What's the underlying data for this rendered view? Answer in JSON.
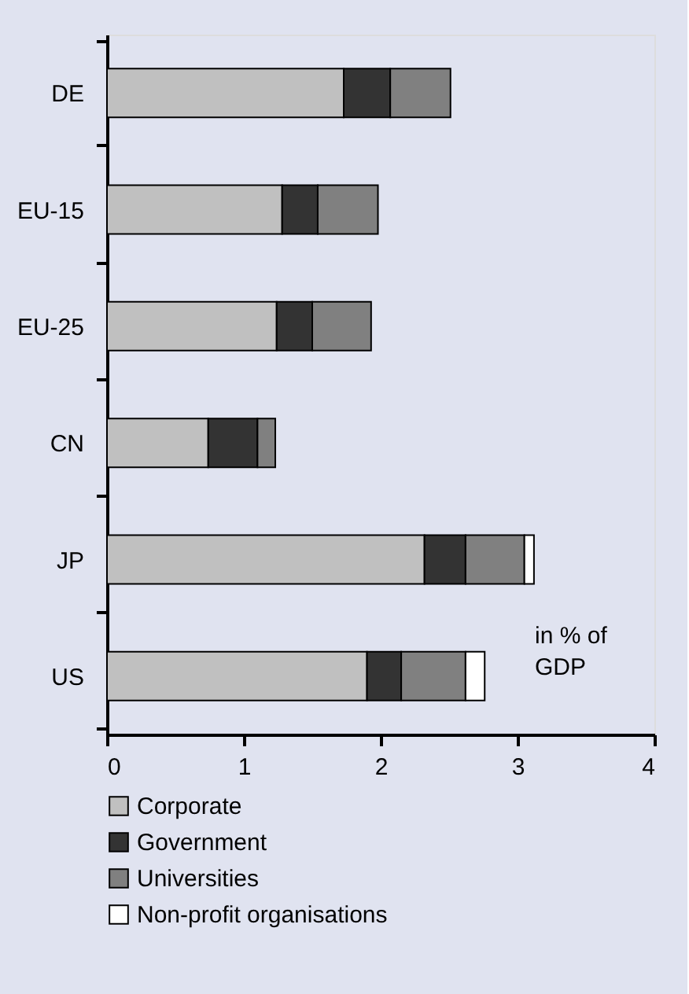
{
  "chart_data": {
    "type": "bar",
    "orientation": "horizontal",
    "stacked": true,
    "categories": [
      "DE",
      "EU-15",
      "EU-25",
      "CN",
      "JP",
      "US"
    ],
    "series": [
      {
        "name": "Corporate",
        "color": "#c0c0c0",
        "values": [
          1.73,
          1.28,
          1.24,
          0.74,
          2.32,
          1.9
        ]
      },
      {
        "name": "Government",
        "color": "#333333",
        "values": [
          0.34,
          0.26,
          0.26,
          0.36,
          0.3,
          0.25
        ]
      },
      {
        "name": "Universities",
        "color": "#808080",
        "values": [
          0.44,
          0.44,
          0.43,
          0.13,
          0.43,
          0.47
        ]
      },
      {
        "name": "Non-profit organisations",
        "color": "#ffffff",
        "values": [
          null,
          null,
          null,
          null,
          0.07,
          0.14
        ]
      }
    ],
    "xlim": [
      0,
      4
    ],
    "xticks": [
      0,
      1,
      2,
      3,
      4
    ],
    "grid": false,
    "legend": "bottom",
    "annotations": [
      "in % of GDP"
    ]
  }
}
